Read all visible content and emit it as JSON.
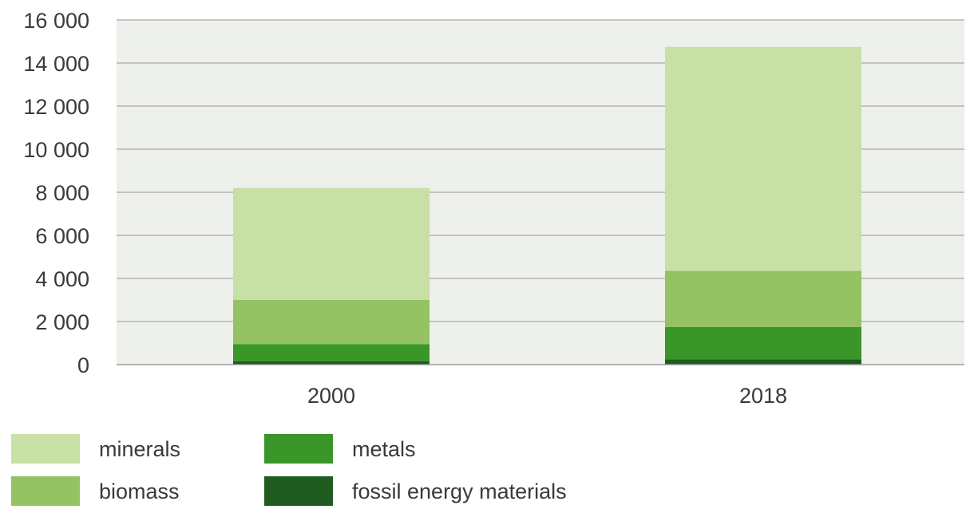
{
  "chart_data": {
    "type": "bar",
    "stacked": true,
    "categories": [
      "2000",
      "2018"
    ],
    "series": [
      {
        "name": "fossil energy materials",
        "color": "#1d5b1e",
        "values": [
          150,
          250
        ]
      },
      {
        "name": "metals",
        "color": "#3a9629",
        "values": [
          800,
          1500
        ]
      },
      {
        "name": "biomass",
        "color": "#95c263",
        "values": [
          2050,
          2600
        ]
      },
      {
        "name": "minerals",
        "color": "#c8dfa5",
        "values": [
          5200,
          10400
        ]
      }
    ],
    "ylim": [
      0,
      16000
    ],
    "yticks": [
      0,
      2000,
      4000,
      6000,
      8000,
      10000,
      12000,
      14000,
      16000
    ],
    "ytick_labels": [
      "0",
      "2 000",
      "4 000",
      "6 000",
      "8 000",
      "10 000",
      "12 000",
      "14 000",
      "16 000"
    ],
    "title": "",
    "xlabel": "",
    "ylabel": "",
    "grid": true,
    "plot_background": "#eef0ec",
    "legend": {
      "placement": "bottom",
      "entries": [
        "minerals",
        "metals",
        "biomass",
        "fossil energy materials"
      ]
    }
  }
}
